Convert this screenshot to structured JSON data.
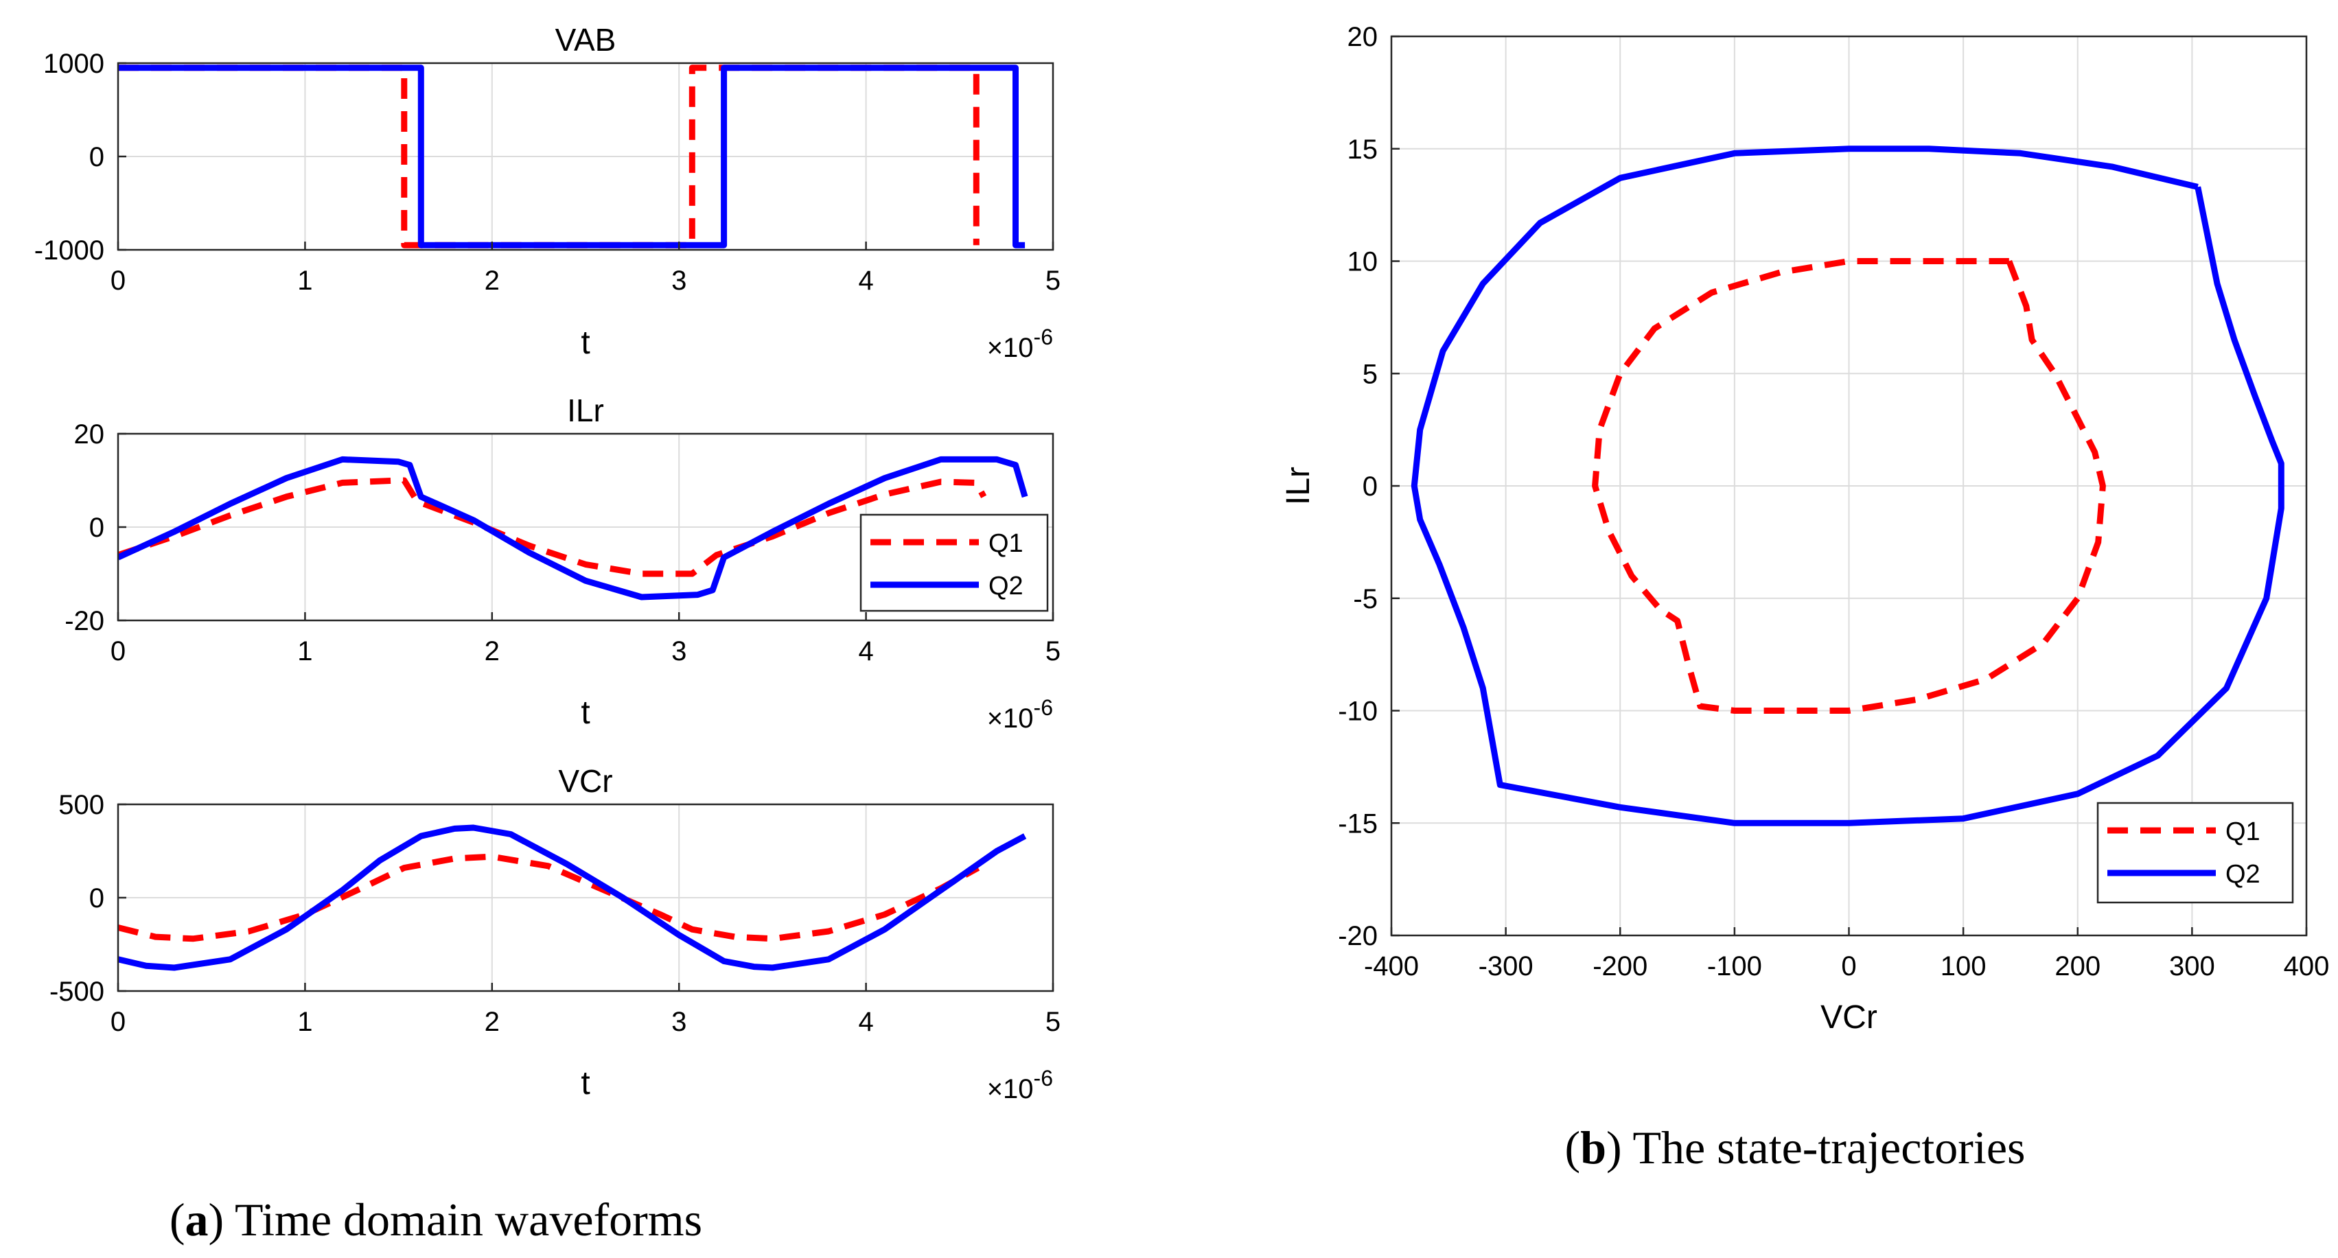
{
  "colors": {
    "q1": "#ff0000",
    "q2": "#0000ff",
    "grid": "#dcdcdc",
    "axis": "#262626",
    "text": "#000000"
  },
  "captions": {
    "a_letter": "a",
    "a_text": " Time domain waveforms",
    "b_letter": "b",
    "b_text": " The state-trajectories",
    "open": "(",
    "close": ")"
  },
  "exponent": {
    "times": "×10",
    "power": "-6"
  },
  "chart_data": [
    {
      "id": "vab",
      "type": "line",
      "title": "VAB",
      "xlabel": "t",
      "ylabel": "",
      "xlim": [
        0,
        5
      ],
      "ylim": [
        -1000,
        1000
      ],
      "xticks": [
        0,
        1,
        2,
        3,
        4,
        5
      ],
      "yticks": [
        -1000,
        0,
        1000
      ],
      "xtick_labels": [
        "0",
        "1",
        "2",
        "3",
        "4",
        "5"
      ],
      "ytick_labels": [
        "-1000",
        "0",
        "1000"
      ],
      "x_multiplier": "×10^-6",
      "grid": true,
      "series": [
        {
          "name": "Q1",
          "style": "dashed",
          "x": [
            0,
            1.53,
            1.53,
            3.07,
            3.07,
            4.59,
            4.59
          ],
          "y": [
            950,
            950,
            -950,
            -950,
            950,
            950,
            -950
          ]
        },
        {
          "name": "Q2",
          "style": "solid",
          "x": [
            0,
            1.62,
            1.62,
            3.24,
            3.24,
            4.8,
            4.8,
            4.85
          ],
          "y": [
            950,
            950,
            -950,
            -950,
            950,
            950,
            -950,
            -950
          ]
        }
      ]
    },
    {
      "id": "ilr",
      "type": "line",
      "title": "ILr",
      "xlabel": "t",
      "ylabel": "",
      "xlim": [
        0,
        5
      ],
      "ylim": [
        -20,
        20
      ],
      "xticks": [
        0,
        1,
        2,
        3,
        4,
        5
      ],
      "yticks": [
        -20,
        0,
        20
      ],
      "xtick_labels": [
        "0",
        "1",
        "2",
        "3",
        "4",
        "5"
      ],
      "ytick_labels": [
        "-20",
        "0",
        "20"
      ],
      "x_multiplier": "×10^-6",
      "grid": true,
      "legend": {
        "position": "east",
        "entries": [
          "Q1",
          "Q2"
        ]
      },
      "series": [
        {
          "name": "Q1",
          "style": "dashed",
          "x": [
            0,
            0.3,
            0.6,
            0.9,
            1.2,
            1.5,
            1.53,
            1.6,
            1.9,
            2.2,
            2.5,
            2.8,
            3.0,
            3.07,
            3.2,
            3.5,
            3.8,
            4.1,
            4.4,
            4.59,
            4.63
          ],
          "y": [
            -6,
            -2,
            2.5,
            6.5,
            9.5,
            10,
            10,
            5.5,
            1,
            -4,
            -8,
            -10,
            -10,
            -10,
            -6,
            -2,
            3,
            7,
            9.7,
            9.5,
            6.5
          ]
        },
        {
          "name": "Q2",
          "style": "solid",
          "x": [
            0,
            0.3,
            0.6,
            0.9,
            1.2,
            1.5,
            1.56,
            1.62,
            1.9,
            2.2,
            2.5,
            2.8,
            3.1,
            3.18,
            3.24,
            3.5,
            3.8,
            4.1,
            4.4,
            4.7,
            4.8,
            4.85
          ],
          "y": [
            -6.5,
            -1,
            5,
            10.5,
            14.5,
            14,
            13.3,
            6.5,
            1.5,
            -5.5,
            -11.5,
            -15,
            -14.5,
            -13.5,
            -6.5,
            -1,
            5,
            10.5,
            14.5,
            14.5,
            13.3,
            6.5
          ]
        }
      ]
    },
    {
      "id": "vcr",
      "type": "line",
      "title": "VCr",
      "xlabel": "t",
      "ylabel": "",
      "xlim": [
        0,
        5
      ],
      "ylim": [
        -500,
        500
      ],
      "xticks": [
        0,
        1,
        2,
        3,
        4,
        5
      ],
      "yticks": [
        -500,
        0,
        500
      ],
      "xtick_labels": [
        "0",
        "1",
        "2",
        "3",
        "4",
        "5"
      ],
      "ytick_labels": [
        "-500",
        "0",
        "500"
      ],
      "x_multiplier": "×10^-6",
      "grid": true,
      "series": [
        {
          "name": "Q1",
          "style": "dashed",
          "x": [
            0,
            0.2,
            0.4,
            0.7,
            1.0,
            1.3,
            1.53,
            1.8,
            2.0,
            2.3,
            2.6,
            2.9,
            3.07,
            3.3,
            3.5,
            3.8,
            4.1,
            4.4,
            4.6
          ],
          "y": [
            -160,
            -210,
            -220,
            -180,
            -90,
            50,
            160,
            210,
            220,
            170,
            40,
            -90,
            -170,
            -210,
            -220,
            -180,
            -90,
            50,
            160
          ]
        },
        {
          "name": "Q2",
          "style": "solid",
          "x": [
            0,
            0.15,
            0.3,
            0.6,
            0.9,
            1.2,
            1.4,
            1.62,
            1.8,
            1.9,
            2.1,
            2.4,
            2.7,
            3.0,
            3.24,
            3.4,
            3.5,
            3.8,
            4.1,
            4.4,
            4.7,
            4.85
          ],
          "y": [
            -330,
            -365,
            -375,
            -330,
            -170,
            40,
            200,
            330,
            370,
            375,
            340,
            180,
            0,
            -200,
            -340,
            -370,
            -375,
            -330,
            -170,
            40,
            250,
            330
          ]
        }
      ]
    },
    {
      "id": "traj",
      "type": "line",
      "title": "",
      "xlabel": "VCr",
      "ylabel": "ILr",
      "xlim": [
        -400,
        400
      ],
      "ylim": [
        -20,
        20
      ],
      "xticks": [
        -400,
        -300,
        -200,
        -100,
        0,
        100,
        200,
        300,
        400
      ],
      "yticks": [
        -20,
        -15,
        -10,
        -5,
        0,
        5,
        10,
        15,
        20
      ],
      "xtick_labels": [
        "-400",
        "-300",
        "-200",
        "-100",
        "0",
        "100",
        "200",
        "300",
        "400"
      ],
      "ytick_labels": [
        "-20",
        "-15",
        "-10",
        "-5",
        "0",
        "5",
        "10",
        "15",
        "20"
      ],
      "grid": true,
      "legend": {
        "position": "southeast",
        "entries": [
          "Q1",
          "Q2"
        ]
      },
      "series": [
        {
          "name": "Q1",
          "style": "dashed",
          "x": [
            140,
            155,
            160,
            180,
            200,
            215,
            222,
            218,
            200,
            170,
            120,
            60,
            0,
            -60,
            -100,
            -130,
            -140,
            -150,
            -165,
            -190,
            -210,
            -222,
            -218,
            -200,
            -170,
            -120,
            -60,
            0,
            60,
            100,
            140
          ],
          "y": [
            10,
            8,
            6.5,
            5,
            3,
            1.5,
            0,
            -2.5,
            -5,
            -7,
            -8.6,
            -9.5,
            -10,
            -10,
            -10,
            -9.8,
            -8,
            -6,
            -5.5,
            -4,
            -2,
            0,
            2.5,
            5,
            7,
            8.6,
            9.5,
            10,
            10,
            10,
            10
          ]
        },
        {
          "name": "Q2",
          "style": "solid",
          "x": [
            305,
            322,
            337,
            355,
            370,
            378,
            378,
            365,
            330,
            270,
            200,
            100,
            0,
            -100,
            -200,
            -305,
            -320,
            -337,
            -358,
            -375,
            -380,
            -375,
            -355,
            -320,
            -270,
            -200,
            -100,
            0,
            70,
            150,
            230,
            305
          ],
          "y": [
            13.3,
            9,
            6.5,
            4,
            2,
            1,
            -1,
            -5,
            -9,
            -12,
            -13.7,
            -14.8,
            -15,
            -15,
            -14.3,
            -13.3,
            -9,
            -6.3,
            -3.5,
            -1.5,
            0,
            2.5,
            6,
            9,
            11.7,
            13.7,
            14.8,
            15,
            15,
            14.8,
            14.2,
            13.3
          ]
        }
      ]
    }
  ]
}
